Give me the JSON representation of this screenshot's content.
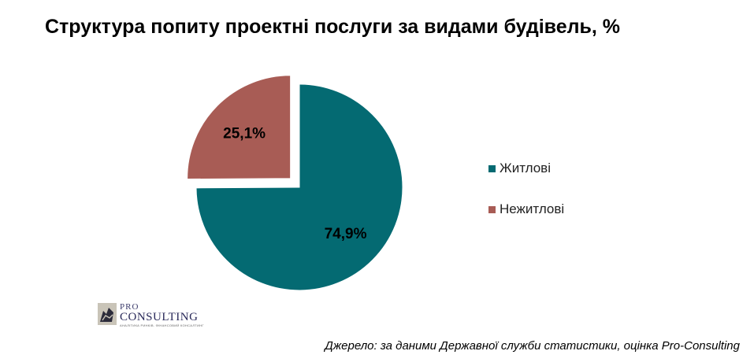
{
  "chart_data": {
    "type": "pie",
    "title": "Структура попиту проектні послуги за видами будівель, %",
    "categories": [
      "Житлові",
      "Нежитлові"
    ],
    "values": [
      74.9,
      25.1
    ],
    "data_labels": [
      "74,9%",
      "25,1%"
    ],
    "colors": [
      "#046A72",
      "#A85C55"
    ],
    "exploded": [
      false,
      true
    ],
    "legend_placement": "right"
  },
  "logo": {
    "line1": "PRO",
    "line2": "CONSULTING",
    "tagline": "АНАЛІТИКА РИНКІВ. ФІНАНСОВИЙ КОНСАЛТИНГ"
  },
  "source": "Джерело: за даними Державної служби статистики, оцінка Pro-Consulting"
}
